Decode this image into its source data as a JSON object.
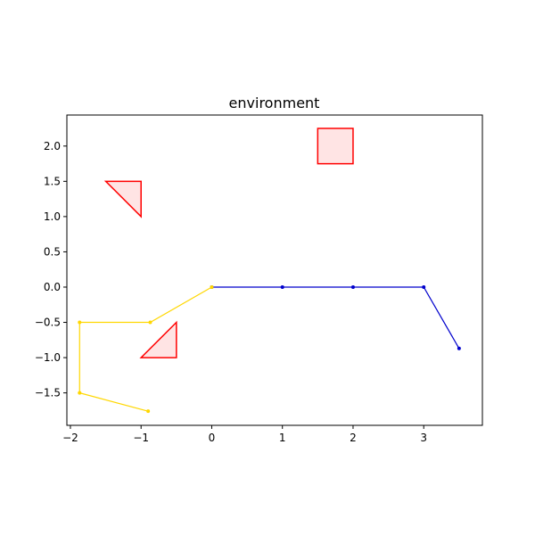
{
  "chart_data": {
    "type": "scatter",
    "title": "environment",
    "xlabel": "",
    "ylabel": "",
    "xlim": [
      -2.05,
      3.83
    ],
    "ylim": [
      -1.96,
      2.44
    ],
    "grid": false,
    "x_ticks": [
      -2,
      -1,
      0,
      1,
      2,
      3
    ],
    "y_ticks": [
      -1.5,
      -1.0,
      -0.5,
      0.0,
      0.5,
      1.0,
      1.5,
      2.0
    ],
    "x_tick_labels": [
      "−2",
      "−1",
      "0",
      "1",
      "2",
      "3"
    ],
    "y_tick_labels": [
      "−1.5",
      "−1.0",
      "−0.5",
      "0.0",
      "0.5",
      "1.0",
      "1.5",
      "2.0"
    ],
    "obstacles": [
      {
        "shape": "square",
        "points": [
          [
            1.5,
            1.75
          ],
          [
            2.0,
            1.75
          ],
          [
            2.0,
            2.25
          ],
          [
            1.5,
            2.25
          ]
        ],
        "edge_color": "#ff0000",
        "fill_color": "#ffe4e4"
      },
      {
        "shape": "triangle",
        "points": [
          [
            -1.5,
            1.5
          ],
          [
            -1.0,
            1.5
          ],
          [
            -1.0,
            1.0
          ]
        ],
        "edge_color": "#ff0000",
        "fill_color": "#ffe4e4"
      },
      {
        "shape": "triangle",
        "points": [
          [
            -1.0,
            -1.0
          ],
          [
            -0.5,
            -1.0
          ],
          [
            -0.5,
            -0.5
          ]
        ],
        "edge_color": "#ff0000",
        "fill_color": "#ffe4e4"
      }
    ],
    "series": [
      {
        "color": "#0000cc",
        "x": [
          0,
          1,
          2,
          3,
          3.5
        ],
        "y": [
          0,
          0,
          0,
          0,
          -0.87
        ]
      },
      {
        "color": "#ffd700",
        "x": [
          0,
          -0.87,
          -1.87,
          -1.87,
          -0.9
        ],
        "y": [
          0,
          -0.5,
          -0.5,
          -1.5,
          -1.76
        ]
      }
    ]
  }
}
